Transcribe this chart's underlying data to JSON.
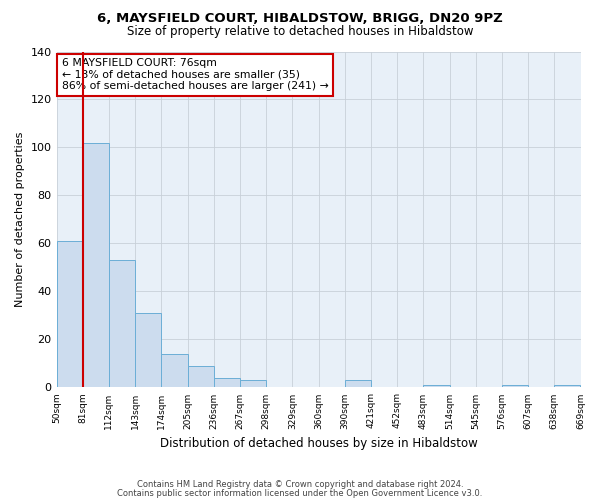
{
  "title": "6, MAYSFIELD COURT, HIBALDSTOW, BRIGG, DN20 9PZ",
  "subtitle": "Size of property relative to detached houses in Hibaldstow",
  "xlabel": "Distribution of detached houses by size in Hibaldstow",
  "ylabel": "Number of detached properties",
  "bar_values": [
    61,
    102,
    53,
    31,
    14,
    9,
    4,
    3,
    0,
    0,
    0,
    3,
    0,
    0,
    1,
    0,
    0,
    1,
    0,
    1
  ],
  "categories": [
    "50sqm",
    "81sqm",
    "112sqm",
    "143sqm",
    "174sqm",
    "205sqm",
    "236sqm",
    "267sqm",
    "298sqm",
    "329sqm",
    "360sqm",
    "390sqm",
    "421sqm",
    "452sqm",
    "483sqm",
    "514sqm",
    "545sqm",
    "576sqm",
    "607sqm",
    "638sqm",
    "669sqm"
  ],
  "bar_color": "#ccdcee",
  "bar_edge_color": "#6baed6",
  "vline_color": "#cc0000",
  "ylim": [
    0,
    140
  ],
  "yticks": [
    0,
    20,
    40,
    60,
    80,
    100,
    120,
    140
  ],
  "annotation_title": "6 MAYSFIELD COURT: 76sqm",
  "annotation_line1": "← 13% of detached houses are smaller (35)",
  "annotation_line2": "86% of semi-detached houses are larger (241) →",
  "annotation_box_color": "#ffffff",
  "annotation_box_edge": "#cc0000",
  "footer1": "Contains HM Land Registry data © Crown copyright and database right 2024.",
  "footer2": "Contains public sector information licensed under the Open Government Licence v3.0.",
  "background_color": "#ffffff",
  "plot_bg_color": "#e8f0f8",
  "grid_color": "#c8d0d8"
}
